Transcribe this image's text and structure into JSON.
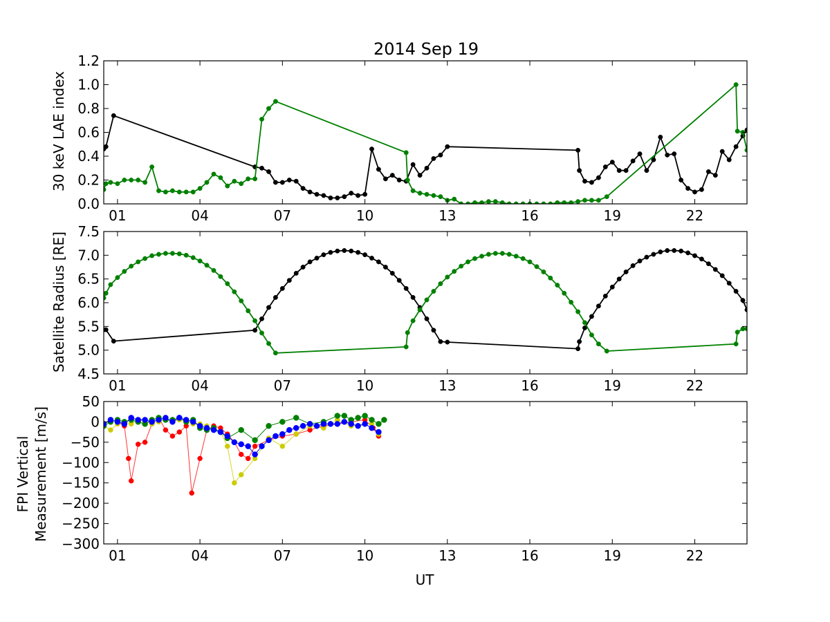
{
  "figure": {
    "title": "2014 Sep 19",
    "xlabel": "UT",
    "background": "#ffffff"
  },
  "chart_data": [
    {
      "type": "line",
      "panel": "top",
      "ylabel": "30 keV LAE index",
      "xlim": [
        0.5,
        23.9
      ],
      "ylim": [
        0,
        1.2
      ],
      "xticks": [
        1,
        4,
        7,
        10,
        13,
        16,
        19,
        22
      ],
      "xtick_labels": [
        "01",
        "04",
        "07",
        "10",
        "13",
        "16",
        "19",
        "22"
      ],
      "yticks": [
        0.0,
        0.2,
        0.4,
        0.6,
        0.8,
        1.0,
        1.2
      ],
      "ytick_labels": [
        "0.0",
        "0.2",
        "0.4",
        "0.6",
        "0.8",
        "1.0",
        "1.2"
      ],
      "series": [
        {
          "color": "#000000",
          "marker": "circle",
          "x": [
            0.5,
            0.58,
            0.86,
            6.0,
            6.25,
            6.5,
            6.75,
            7.0,
            7.25,
            7.5,
            7.75,
            8.0,
            8.25,
            8.5,
            8.75,
            9.0,
            9.25,
            9.5,
            9.75,
            10.0,
            10.25,
            10.5,
            10.75,
            11.0,
            11.25,
            11.5,
            11.75,
            12.0,
            12.25,
            12.5,
            12.75,
            13.0,
            17.75,
            17.8,
            18.0,
            18.25,
            18.5,
            18.75,
            19.0,
            19.25,
            19.5,
            19.75,
            20.0,
            20.25,
            20.5,
            20.75,
            21.0,
            21.25,
            21.5,
            21.75,
            22.0,
            22.25,
            22.5,
            22.75,
            23.0,
            23.25,
            23.5,
            23.75,
            23.9
          ],
          "y": [
            0.46,
            0.48,
            0.74,
            0.31,
            0.3,
            0.27,
            0.18,
            0.18,
            0.2,
            0.19,
            0.13,
            0.1,
            0.08,
            0.07,
            0.05,
            0.05,
            0.06,
            0.09,
            0.07,
            0.08,
            0.46,
            0.29,
            0.21,
            0.24,
            0.2,
            0.19,
            0.33,
            0.24,
            0.3,
            0.38,
            0.41,
            0.48,
            0.45,
            0.28,
            0.19,
            0.18,
            0.22,
            0.31,
            0.35,
            0.28,
            0.28,
            0.36,
            0.42,
            0.28,
            0.37,
            0.56,
            0.41,
            0.42,
            0.2,
            0.13,
            0.1,
            0.12,
            0.27,
            0.24,
            0.44,
            0.37,
            0.48,
            0.57,
            0.62
          ]
        },
        {
          "color": "#008000",
          "marker": "circle",
          "x": [
            0.5,
            0.58,
            0.75,
            1.0,
            1.25,
            1.5,
            1.75,
            2.0,
            2.25,
            2.5,
            2.75,
            3.0,
            3.25,
            3.5,
            3.75,
            4.0,
            4.25,
            4.5,
            4.75,
            5.0,
            5.25,
            5.5,
            5.75,
            6.0,
            6.25,
            6.5,
            6.75,
            11.5,
            11.55,
            11.75,
            12.0,
            12.25,
            12.5,
            12.75,
            13.0,
            13.25,
            13.5,
            13.75,
            14.0,
            14.25,
            14.5,
            14.75,
            15.0,
            15.25,
            15.5,
            15.75,
            16.0,
            16.25,
            16.5,
            16.75,
            17.0,
            17.25,
            17.5,
            17.75,
            18.0,
            18.25,
            18.5,
            18.8,
            23.5,
            23.55,
            23.75,
            23.9
          ],
          "y": [
            0.12,
            0.17,
            0.18,
            0.17,
            0.2,
            0.2,
            0.2,
            0.18,
            0.31,
            0.11,
            0.1,
            0.11,
            0.1,
            0.1,
            0.1,
            0.13,
            0.18,
            0.25,
            0.22,
            0.15,
            0.19,
            0.17,
            0.21,
            0.21,
            0.71,
            0.8,
            0.86,
            0.43,
            0.2,
            0.11,
            0.09,
            0.08,
            0.07,
            0.06,
            0.03,
            0.04,
            0.0,
            0.0,
            0.01,
            0.01,
            0.02,
            0.02,
            0.01,
            0.0,
            0.0,
            0.0,
            0.0,
            0.0,
            0.0,
            0.0,
            0.01,
            0.01,
            0.01,
            0.02,
            0.03,
            0.03,
            0.03,
            0.06,
            1.0,
            0.61,
            0.6,
            0.45
          ]
        }
      ]
    },
    {
      "type": "line",
      "panel": "middle",
      "ylabel": "Satellite Radius [RE]",
      "xlim": [
        0.5,
        23.9
      ],
      "ylim": [
        4.5,
        7.5
      ],
      "xticks": [
        1,
        4,
        7,
        10,
        13,
        16,
        19,
        22
      ],
      "xtick_labels": [
        "01",
        "04",
        "07",
        "10",
        "13",
        "16",
        "19",
        "22"
      ],
      "yticks": [
        4.5,
        5.0,
        5.5,
        6.0,
        6.5,
        7.0,
        7.5
      ],
      "ytick_labels": [
        "4.5",
        "5.0",
        "5.5",
        "6.0",
        "6.5",
        "7.0",
        "7.5"
      ],
      "series": [
        {
          "color": "#000000",
          "marker": "circle",
          "x": [
            0.5,
            0.58,
            0.86,
            6.0,
            6.25,
            6.5,
            6.75,
            7.0,
            7.25,
            7.5,
            7.75,
            8.0,
            8.25,
            8.5,
            8.75,
            9.0,
            9.25,
            9.5,
            9.75,
            10.0,
            10.25,
            10.5,
            10.75,
            11.0,
            11.25,
            11.5,
            11.75,
            12.0,
            12.25,
            12.5,
            12.75,
            13.0,
            17.75,
            17.8,
            18.0,
            18.25,
            18.5,
            18.75,
            19.0,
            19.25,
            19.5,
            19.75,
            20.0,
            20.25,
            20.5,
            20.75,
            21.0,
            21.25,
            21.5,
            21.75,
            22.0,
            22.25,
            22.5,
            22.75,
            23.0,
            23.25,
            23.5,
            23.75,
            23.9
          ],
          "y": [
            5.43,
            5.43,
            5.19,
            5.42,
            5.66,
            5.9,
            6.11,
            6.3,
            6.47,
            6.62,
            6.75,
            6.86,
            6.94,
            7.01,
            7.06,
            7.09,
            7.1,
            7.09,
            7.06,
            7.01,
            6.94,
            6.86,
            6.75,
            6.62,
            6.47,
            6.3,
            6.11,
            5.9,
            5.66,
            5.42,
            5.18,
            5.17,
            5.03,
            5.18,
            5.47,
            5.71,
            5.93,
            6.14,
            6.33,
            6.5,
            6.65,
            6.78,
            6.88,
            6.96,
            7.02,
            7.07,
            7.1,
            7.1,
            7.09,
            7.05,
            6.99,
            6.92,
            6.82,
            6.7,
            6.57,
            6.41,
            6.24,
            6.05,
            5.85
          ]
        },
        {
          "color": "#008000",
          "marker": "circle",
          "x": [
            0.5,
            0.58,
            0.75,
            1.0,
            1.25,
            1.5,
            1.75,
            2.0,
            2.25,
            2.5,
            2.75,
            3.0,
            3.25,
            3.5,
            3.75,
            4.0,
            4.25,
            4.5,
            4.75,
            5.0,
            5.25,
            5.5,
            5.75,
            6.0,
            6.25,
            6.5,
            6.75,
            11.5,
            11.55,
            11.75,
            12.0,
            12.25,
            12.5,
            12.75,
            13.0,
            13.25,
            13.5,
            13.75,
            14.0,
            14.25,
            14.5,
            14.75,
            15.0,
            15.25,
            15.5,
            15.75,
            16.0,
            16.25,
            16.5,
            16.75,
            17.0,
            17.25,
            17.5,
            17.75,
            18.0,
            18.25,
            18.5,
            18.8,
            23.5,
            23.55,
            23.75,
            23.9
          ],
          "y": [
            6.1,
            6.2,
            6.38,
            6.53,
            6.66,
            6.77,
            6.86,
            6.93,
            6.99,
            7.02,
            7.04,
            7.04,
            7.03,
            7.0,
            6.95,
            6.88,
            6.79,
            6.68,
            6.55,
            6.4,
            6.23,
            6.04,
            5.83,
            5.62,
            5.36,
            5.14,
            4.94,
            5.07,
            5.37,
            5.62,
            5.85,
            6.06,
            6.24,
            6.4,
            6.54,
            6.66,
            6.77,
            6.86,
            6.93,
            6.98,
            7.02,
            7.04,
            7.04,
            7.02,
            6.98,
            6.93,
            6.86,
            6.76,
            6.65,
            6.52,
            6.37,
            6.2,
            6.01,
            5.81,
            5.58,
            5.32,
            5.13,
            4.98,
            5.13,
            5.38,
            5.45,
            5.45
          ]
        }
      ]
    },
    {
      "type": "line",
      "panel": "bottom",
      "ylabel": "FPI Vertical\nMeasurement [m/s]",
      "xlim": [
        0.5,
        23.9
      ],
      "ylim": [
        -300,
        50
      ],
      "xticks": [
        1,
        4,
        7,
        10,
        13,
        16,
        19,
        22
      ],
      "xtick_labels": [
        "01",
        "04",
        "07",
        "10",
        "13",
        "16",
        "19",
        "22"
      ],
      "yticks": [
        -300,
        -250,
        -200,
        -150,
        -100,
        -50,
        0,
        50
      ],
      "ytick_labels": [
        "−300",
        "−250",
        "−200",
        "−150",
        "−100",
        "−50",
        "0",
        "50"
      ],
      "series": [
        {
          "color": "#ff0000",
          "marker": "circle",
          "x": [
            0.5,
            0.75,
            1.0,
            1.25,
            1.4,
            1.5,
            1.75,
            2.0,
            2.25,
            2.5,
            2.75,
            3.0,
            3.25,
            3.5,
            3.7,
            4.0,
            4.25,
            4.5,
            4.75,
            5.0,
            5.25,
            5.5,
            5.75,
            6.0,
            6.5,
            7.0,
            7.5,
            8.0,
            8.5,
            9.0,
            9.5,
            10.0,
            10.3,
            10.5
          ],
          "y": [
            -5,
            5,
            0,
            -10,
            -90,
            -145,
            -55,
            -50,
            -5,
            10,
            -20,
            -35,
            -25,
            -10,
            -175,
            -90,
            -20,
            -10,
            -15,
            -30,
            -50,
            -80,
            -90,
            -60,
            -45,
            -35,
            -30,
            -20,
            -10,
            -5,
            0,
            5,
            -15,
            -35
          ]
        },
        {
          "color": "#cccc00",
          "marker": "circle",
          "x": [
            0.5,
            0.75,
            1.0,
            1.25,
            1.5,
            1.75,
            2.0,
            2.25,
            2.5,
            2.75,
            3.0,
            3.25,
            3.5,
            3.75,
            4.0,
            4.25,
            4.5,
            4.75,
            5.0,
            5.25,
            5.5,
            6.0,
            6.5,
            7.0,
            7.5,
            8.0,
            8.5,
            9.0,
            9.5,
            10.0,
            10.25,
            10.5
          ],
          "y": [
            -10,
            -20,
            -5,
            0,
            -5,
            5,
            0,
            -5,
            0,
            5,
            0,
            5,
            0,
            -5,
            -5,
            -10,
            -20,
            -25,
            -60,
            -150,
            -130,
            -90,
            -40,
            -60,
            -30,
            -10,
            -15,
            5,
            -10,
            -5,
            -5,
            -30
          ]
        },
        {
          "color": "#008000",
          "marker": "circle",
          "x": [
            0.5,
            0.75,
            1.0,
            1.25,
            1.5,
            1.75,
            2.0,
            2.25,
            2.5,
            2.75,
            3.0,
            3.25,
            3.5,
            3.75,
            4.0,
            4.25,
            4.5,
            4.75,
            5.0,
            5.5,
            6.0,
            6.5,
            7.0,
            7.5,
            8.0,
            8.5,
            9.0,
            9.25,
            9.5,
            9.75,
            10.0,
            10.25,
            10.5,
            10.7
          ],
          "y": [
            -10,
            0,
            5,
            0,
            5,
            0,
            -5,
            5,
            10,
            5,
            5,
            10,
            0,
            5,
            -15,
            -20,
            -15,
            -25,
            -40,
            -20,
            -45,
            -10,
            0,
            10,
            -5,
            0,
            15,
            15,
            5,
            10,
            15,
            5,
            -5,
            5
          ]
        },
        {
          "color": "#0000ff",
          "marker": "circle",
          "x": [
            0.5,
            0.75,
            1.0,
            1.25,
            1.5,
            1.75,
            2.0,
            2.25,
            2.5,
            2.75,
            3.0,
            3.25,
            3.5,
            3.75,
            4.0,
            4.25,
            4.5,
            4.75,
            5.0,
            5.25,
            5.5,
            5.75,
            6.0,
            6.25,
            6.5,
            6.75,
            7.0,
            7.25,
            7.5,
            7.75,
            8.0,
            8.25,
            8.5,
            8.75,
            9.0,
            9.25,
            9.5,
            9.75,
            10.0,
            10.25,
            10.5
          ],
          "y": [
            -5,
            5,
            0,
            -5,
            10,
            5,
            5,
            0,
            5,
            10,
            0,
            10,
            5,
            0,
            -10,
            -15,
            -20,
            -25,
            -35,
            -50,
            -55,
            -60,
            -80,
            -60,
            -45,
            -35,
            -30,
            -20,
            -15,
            -10,
            -5,
            -10,
            -5,
            -5,
            -5,
            0,
            -5,
            -10,
            -5,
            -15,
            -25
          ]
        }
      ]
    }
  ]
}
